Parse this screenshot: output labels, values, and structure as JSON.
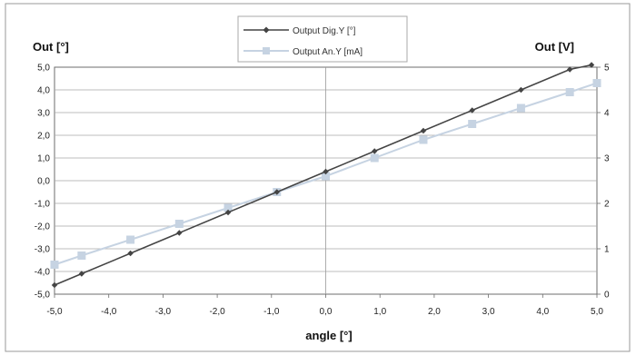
{
  "chart_data": {
    "type": "line",
    "xlabel": "angle [°]",
    "ylabel_left": "Out [°]",
    "ylabel_right": "Out [V]",
    "xlim": [
      -5,
      5
    ],
    "ylim_left": [
      -5,
      5
    ],
    "ylim_right": [
      0,
      5
    ],
    "x_ticks": [
      "-5,0",
      "-4,0",
      "-3,0",
      "-2,0",
      "-1,0",
      "0,0",
      "1,0",
      "2,0",
      "3,0",
      "4,0",
      "5,0"
    ],
    "y_left_ticks": [
      "5,0",
      "4,0",
      "3,0",
      "2,0",
      "1,0",
      "0,0",
      "-1,0",
      "-2,0",
      "-3,0",
      "-4,0",
      "-5,0"
    ],
    "y_right_ticks": [
      "5",
      "4",
      "3",
      "2",
      "1",
      "0"
    ],
    "grid": true,
    "legend_position": "top-center",
    "series": [
      {
        "name": "Output Dig.Y [°]",
        "axis": "left",
        "color": "#444444",
        "marker": "diamond",
        "x": [
          -5.0,
          -4.5,
          -3.6,
          -2.7,
          -1.8,
          -0.9,
          0.0,
          0.9,
          1.8,
          2.7,
          3.6,
          4.5,
          4.9
        ],
        "y": [
          -4.6,
          -4.1,
          -3.2,
          -2.3,
          -1.4,
          -0.5,
          0.4,
          1.3,
          2.2,
          3.1,
          4.0,
          4.9,
          5.1
        ]
      },
      {
        "name": "Output An.Y [mA]",
        "axis": "right",
        "color": "#c6d3e2",
        "marker": "square",
        "x": [
          -5.0,
          -4.5,
          -3.6,
          -2.7,
          -1.8,
          -0.9,
          0.0,
          0.9,
          1.8,
          2.7,
          3.6,
          4.5,
          5.0
        ],
        "y": [
          0.65,
          0.85,
          1.2,
          1.55,
          1.9,
          2.25,
          2.6,
          3.0,
          3.4,
          3.75,
          4.1,
          4.45,
          4.65
        ]
      }
    ]
  }
}
